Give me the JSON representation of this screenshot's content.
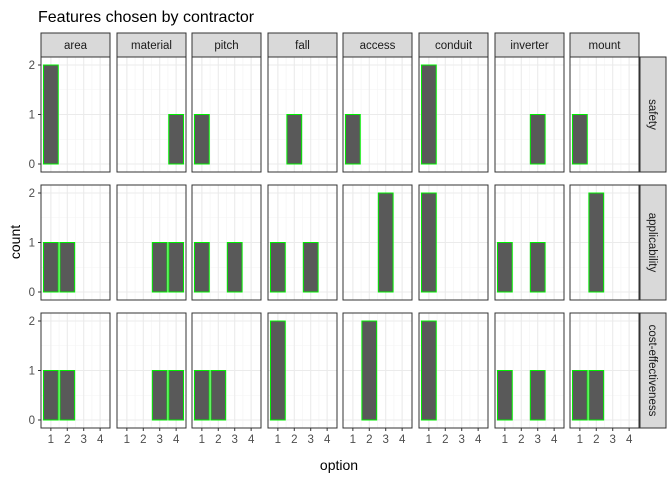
{
  "chart_data": {
    "type": "bar",
    "title": "Features chosen by contractor",
    "xlabel": "option",
    "ylabel": "count",
    "x_ticks": [
      "1",
      "2",
      "3",
      "4"
    ],
    "y_ticks": [
      "0",
      "1",
      "2"
    ],
    "ylim": [
      0,
      2
    ],
    "facet_columns": [
      "area",
      "material",
      "pitch",
      "fall",
      "access",
      "conduit",
      "inverter",
      "mount"
    ],
    "facet_rows": [
      "safety",
      "applicability",
      "cost-effectiveness"
    ],
    "grid": true,
    "colors": {
      "bar_fill": "#595959",
      "bar_outline": "#00ee00",
      "strip_fill": "#d9d9d9",
      "grid": "#ebebeb"
    },
    "panels": {
      "safety": {
        "area": [
          2,
          0,
          0,
          0
        ],
        "material": [
          0,
          0,
          0,
          1
        ],
        "pitch": [
          1,
          0,
          0,
          0
        ],
        "fall": [
          0,
          1,
          0,
          0
        ],
        "access": [
          1,
          0,
          0,
          0
        ],
        "conduit": [
          2,
          0,
          0,
          0
        ],
        "inverter": [
          0,
          0,
          1,
          0
        ],
        "mount": [
          1,
          0,
          0,
          0
        ]
      },
      "applicability": {
        "area": [
          1,
          1,
          0,
          0
        ],
        "material": [
          0,
          0,
          1,
          1
        ],
        "pitch": [
          1,
          0,
          1,
          0
        ],
        "fall": [
          1,
          0,
          1,
          0
        ],
        "access": [
          0,
          0,
          2,
          0
        ],
        "conduit": [
          2,
          0,
          0,
          0
        ],
        "inverter": [
          1,
          0,
          1,
          0
        ],
        "mount": [
          0,
          2,
          0,
          0
        ]
      },
      "cost-effectiveness": {
        "area": [
          1,
          1,
          0,
          0
        ],
        "material": [
          0,
          0,
          1,
          1
        ],
        "pitch": [
          1,
          1,
          0,
          0
        ],
        "fall": [
          2,
          0,
          0,
          0
        ],
        "access": [
          0,
          2,
          0,
          0
        ],
        "conduit": [
          2,
          0,
          0,
          0
        ],
        "inverter": [
          1,
          0,
          1,
          0
        ],
        "mount": [
          1,
          1,
          0,
          0
        ]
      }
    }
  }
}
